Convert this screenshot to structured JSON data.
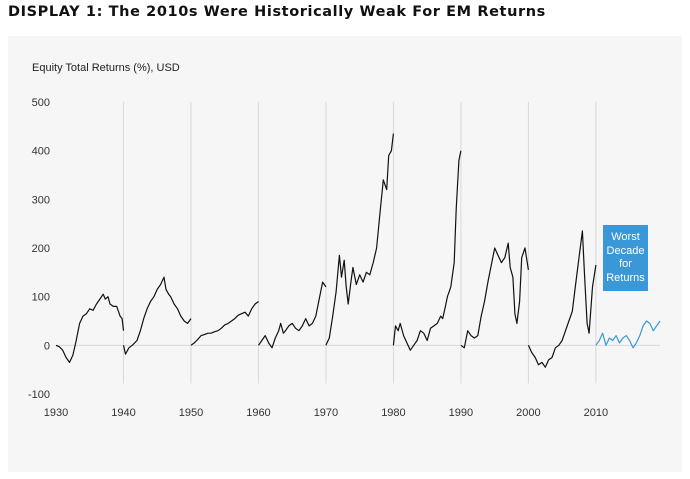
{
  "page": {
    "title": "DISPLAY 1: The 2010s Were Historically Weak For EM Returns"
  },
  "colors": {
    "main_line": "#111111",
    "highlight_line": "#3a98d8",
    "callout_bg": "#3a98d8",
    "panel_bg": "#f6f6f6",
    "decade_line": "#d9d9d9"
  },
  "chart_data": {
    "type": "line",
    "title": "",
    "xlabel": "",
    "ylabel": "Equity Total Returns (%), USD",
    "xlim": [
      1930,
      2019.5
    ],
    "ylim": [
      -100,
      500
    ],
    "x_ticks": [
      1930,
      1940,
      1950,
      1960,
      1970,
      1980,
      1990,
      2000,
      2010
    ],
    "y_ticks": [
      -100,
      0,
      100,
      200,
      300,
      400,
      500
    ],
    "grid": {
      "vertical_decade_lines": true,
      "horizontal_zero_line": true
    },
    "series": [
      {
        "decade": "1930s",
        "highlight": false,
        "x": [
          1930,
          1930.5,
          1931,
          1931.5,
          1932,
          1932.5,
          1933,
          1933.5,
          1934,
          1934.5,
          1935,
          1935.5,
          1936,
          1936.5,
          1937,
          1937.3,
          1937.7,
          1938,
          1938.5,
          1939,
          1939.5,
          1939.8,
          1940
        ],
        "y": [
          0,
          -3,
          -10,
          -25,
          -35,
          -20,
          10,
          45,
          60,
          65,
          75,
          72,
          85,
          95,
          105,
          95,
          100,
          85,
          80,
          80,
          60,
          55,
          30
        ]
      },
      {
        "decade": "1940s",
        "highlight": false,
        "x": [
          1940,
          1940.3,
          1940.8,
          1941.3,
          1942,
          1942.5,
          1943,
          1943.5,
          1944,
          1944.5,
          1945,
          1945.5,
          1946,
          1946.3,
          1946.7,
          1947,
          1947.5,
          1948,
          1948.5,
          1949,
          1949.5,
          1950
        ],
        "y": [
          0,
          -18,
          -5,
          0,
          10,
          30,
          55,
          75,
          90,
          100,
          115,
          125,
          140,
          115,
          105,
          100,
          85,
          75,
          60,
          50,
          45,
          55
        ]
      },
      {
        "decade": "1950s",
        "highlight": false,
        "x": [
          1950,
          1950.5,
          1951,
          1951.5,
          1952,
          1952.5,
          1953,
          1953.5,
          1954,
          1954.5,
          1955,
          1955.5,
          1956,
          1956.5,
          1957,
          1957.5,
          1958,
          1958.5,
          1959,
          1959.5,
          1960
        ],
        "y": [
          0,
          5,
          12,
          20,
          22,
          25,
          25,
          28,
          30,
          35,
          42,
          45,
          50,
          55,
          62,
          65,
          68,
          60,
          75,
          85,
          90
        ]
      },
      {
        "decade": "1960s",
        "highlight": false,
        "x": [
          1960,
          1960.5,
          1961,
          1961.5,
          1962,
          1962.5,
          1963,
          1963.3,
          1963.7,
          1964,
          1964.5,
          1965,
          1965.5,
          1966,
          1966.5,
          1967,
          1967.5,
          1968,
          1968.5,
          1969,
          1969.5,
          1970
        ],
        "y": [
          0,
          10,
          20,
          5,
          -5,
          15,
          30,
          45,
          25,
          30,
          40,
          45,
          35,
          30,
          40,
          55,
          40,
          45,
          60,
          95,
          130,
          120
        ]
      },
      {
        "decade": "1970s",
        "highlight": false,
        "x": [
          1970,
          1970.5,
          1971,
          1971.5,
          1972,
          1972.3,
          1972.7,
          1973,
          1973.3,
          1973.7,
          1974,
          1974.5,
          1975,
          1975.5,
          1976,
          1976.5,
          1977,
          1977.5,
          1978,
          1978.5,
          1979,
          1979.3,
          1979.7,
          1980
        ],
        "y": [
          0,
          15,
          60,
          110,
          185,
          140,
          175,
          120,
          85,
          130,
          160,
          125,
          145,
          130,
          150,
          145,
          170,
          200,
          270,
          340,
          320,
          390,
          400,
          435
        ]
      },
      {
        "decade": "1980s",
        "highlight": false,
        "x": [
          1980,
          1980.3,
          1980.7,
          1981,
          1981.5,
          1982,
          1982.5,
          1983,
          1983.5,
          1984,
          1984.5,
          1985,
          1985.5,
          1986,
          1986.5,
          1987,
          1987.3,
          1987.7,
          1988,
          1988.5,
          1989,
          1989.3,
          1989.7,
          1990
        ],
        "y": [
          0,
          40,
          30,
          45,
          20,
          5,
          -10,
          0,
          10,
          30,
          25,
          10,
          35,
          40,
          45,
          60,
          55,
          80,
          100,
          120,
          170,
          280,
          380,
          400
        ]
      },
      {
        "decade": "1990s",
        "highlight": false,
        "x": [
          1990,
          1990.5,
          1991,
          1991.5,
          1992,
          1992.5,
          1993,
          1993.5,
          1994,
          1994.5,
          1995,
          1995.5,
          1996,
          1996.5,
          1997,
          1997.3,
          1997.7,
          1998,
          1998.3,
          1998.7,
          1999,
          1999.5,
          2000
        ],
        "y": [
          0,
          -5,
          30,
          20,
          15,
          20,
          60,
          90,
          130,
          165,
          200,
          185,
          170,
          180,
          210,
          160,
          140,
          65,
          45,
          90,
          180,
          200,
          155
        ]
      },
      {
        "decade": "2000s",
        "highlight": false,
        "x": [
          2000,
          2000.5,
          2001,
          2001.5,
          2002,
          2002.5,
          2003,
          2003.5,
          2004,
          2004.5,
          2005,
          2005.5,
          2006,
          2006.5,
          2007,
          2007.5,
          2008,
          2008.3,
          2008.7,
          2009,
          2009.5,
          2010
        ],
        "y": [
          0,
          -15,
          -25,
          -40,
          -35,
          -45,
          -30,
          -25,
          -5,
          0,
          10,
          30,
          50,
          70,
          125,
          180,
          235,
          150,
          45,
          25,
          120,
          165
        ]
      },
      {
        "decade": "2010s",
        "highlight": true,
        "x": [
          2010,
          2010.5,
          2011,
          2011.5,
          2012,
          2012.5,
          2013,
          2013.5,
          2014,
          2014.5,
          2015,
          2015.5,
          2016,
          2016.5,
          2017,
          2017.5,
          2018,
          2018.5,
          2019,
          2019.5
        ],
        "y": [
          0,
          10,
          25,
          0,
          15,
          10,
          20,
          5,
          15,
          20,
          10,
          -5,
          5,
          20,
          40,
          50,
          45,
          30,
          40,
          50
        ]
      }
    ],
    "annotations": [
      {
        "text_lines": [
          "Worst",
          "Decade",
          "for",
          "Returns"
        ]
      }
    ]
  }
}
